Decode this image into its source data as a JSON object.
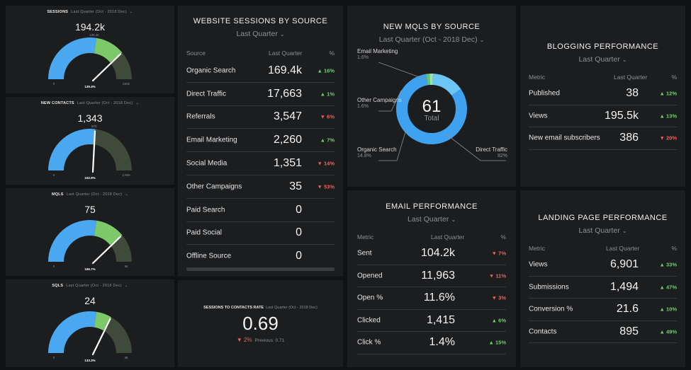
{
  "gauges": [
    {
      "title": "SESSIONS",
      "period": "Last Quarter (Oct - 2018 Dec)",
      "value": "194.2k",
      "min": "0",
      "max": "250k",
      "pct": "139.4%",
      "target_label": "139.4k",
      "fraction": 0.78
    },
    {
      "title": "NEW CONTACTS",
      "period": "Last Quarter (Oct - 2018 Dec)",
      "value": "1,343",
      "min": "0",
      "max": "2,500",
      "pct": "152.9%",
      "target_label": "878",
      "fraction": 0.54
    },
    {
      "title": "MQLS",
      "period": "Last Quarter (Oct - 2018 Dec)",
      "value": "75",
      "min": "0",
      "max": "96",
      "pct": "166.7%",
      "target_label": "",
      "fraction": 0.78
    },
    {
      "title": "SQLS",
      "period": "Last Quarter (Oct - 2018 Dec)",
      "value": "24",
      "min": "0",
      "max": "36",
      "pct": "133.3%",
      "target_label": "",
      "fraction": 0.67
    }
  ],
  "sessions_by_source": {
    "title": "WEBSITE SESSIONS BY SOURCE",
    "period": "Last Quarter",
    "headers": {
      "source": "Source",
      "value": "Last Quarter",
      "pct": "%"
    },
    "rows": [
      {
        "label": "Organic Search",
        "value": "169.4k",
        "change": "16%",
        "dir": "up"
      },
      {
        "label": "Direct Traffic",
        "value": "17,663",
        "change": "1%",
        "dir": "up"
      },
      {
        "label": "Referrals",
        "value": "3,547",
        "change": "6%",
        "dir": "down"
      },
      {
        "label": "Email Marketing",
        "value": "2,260",
        "change": "7%",
        "dir": "up"
      },
      {
        "label": "Social Media",
        "value": "1,351",
        "change": "14%",
        "dir": "down"
      },
      {
        "label": "Other Campaigns",
        "value": "35",
        "change": "53%",
        "dir": "down"
      },
      {
        "label": "Paid Search",
        "value": "0",
        "change": "",
        "dir": ""
      },
      {
        "label": "Paid Social",
        "value": "0",
        "change": "",
        "dir": ""
      },
      {
        "label": "Offline Source",
        "value": "0",
        "change": "",
        "dir": ""
      }
    ]
  },
  "rate": {
    "title": "SESSIONS TO CONTACTS RATE",
    "period": "Last Quarter (Oct - 2018 Dec)",
    "value": "0.69",
    "change": "2%",
    "previous": "Previous: 0.71"
  },
  "mqls_by_source": {
    "title": "NEW MQLS BY SOURCE",
    "period": "Last Quarter (Oct - 2018 Dec)",
    "total": "61",
    "total_label": "Total",
    "slices": [
      {
        "name": "Direct Traffic",
        "pct": "82%",
        "value": 82,
        "color": "#3ea2f0"
      },
      {
        "name": "Organic Search",
        "pct": "14.8%",
        "value": 14.8,
        "color": "#6cc6f5"
      },
      {
        "name": "Other Campaigns",
        "pct": "1.6%",
        "value": 1.6,
        "color": "#9fe0b8"
      },
      {
        "name": "Email Marketing",
        "pct": "1.6%",
        "value": 1.6,
        "color": "#5fc86a"
      }
    ]
  },
  "email_performance": {
    "title": "EMAIL PERFORMANCE",
    "period": "Last Quarter",
    "headers": {
      "metric": "Metric",
      "value": "Last Quarter",
      "pct": "%"
    },
    "rows": [
      {
        "label": "Sent",
        "value": "104.2k",
        "change": "7%",
        "dir": "down"
      },
      {
        "label": "Opened",
        "value": "11,963",
        "change": "11%",
        "dir": "down"
      },
      {
        "label": "Open %",
        "value": "11.6%",
        "change": "3%",
        "dir": "down"
      },
      {
        "label": "Clicked",
        "value": "1,415",
        "change": "6%",
        "dir": "up"
      },
      {
        "label": "Click %",
        "value": "1.4%",
        "change": "15%",
        "dir": "up"
      }
    ]
  },
  "blogging": {
    "title": "BLOGGING PERFORMANCE",
    "period": "Last Quarter",
    "headers": {
      "metric": "Metric",
      "value": "Last Quarter",
      "pct": "%"
    },
    "rows": [
      {
        "label": "Published",
        "value": "38",
        "change": "12%",
        "dir": "up"
      },
      {
        "label": "Views",
        "value": "195.5k",
        "change": "13%",
        "dir": "up"
      },
      {
        "label": "New email subscribers",
        "value": "386",
        "change": "20%",
        "dir": "down"
      }
    ]
  },
  "landing": {
    "title": "LANDING PAGE PERFORMANCE",
    "period": "Last Quarter",
    "headers": {
      "metric": "Metric",
      "value": "Last Quarter",
      "pct": "%"
    },
    "rows": [
      {
        "label": "Views",
        "value": "6,901",
        "change": "33%",
        "dir": "up"
      },
      {
        "label": "Submissions",
        "value": "1,494",
        "change": "47%",
        "dir": "up"
      },
      {
        "label": "Conversion %",
        "value": "21.6",
        "change": "10%",
        "dir": "up"
      },
      {
        "label": "Contacts",
        "value": "895",
        "change": "49%",
        "dir": "up"
      }
    ]
  },
  "colors": {
    "up": "#6bd26b",
    "down": "#f0605c",
    "gauge_blue": "#4aa8f0",
    "gauge_green": "#7dc96a",
    "gauge_dark": "#3f4a3a"
  }
}
